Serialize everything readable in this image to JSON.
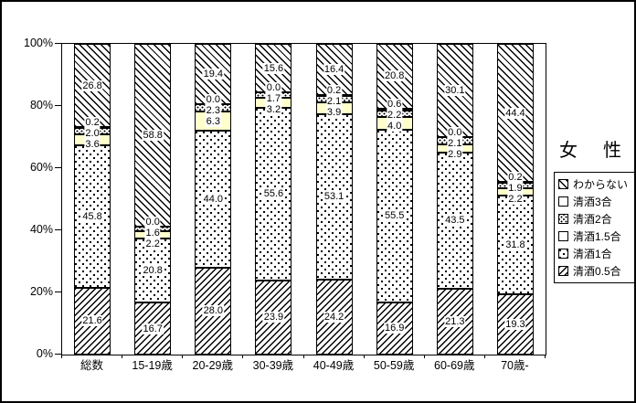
{
  "chart_data": {
    "type": "bar",
    "variant": "100%-stacked-vertical",
    "title": "女　性",
    "categories": [
      "総数",
      "15-19歳",
      "20-29歳",
      "30-39歳",
      "40-49歳",
      "50-59歳",
      "60-69歳",
      "70歳-"
    ],
    "series": [
      {
        "name": "清酒0.5合",
        "pattern": "diagonal-forward-hatch",
        "values": [
          21.6,
          16.7,
          28.0,
          23.9,
          24.2,
          16.9,
          21.3,
          19.3
        ]
      },
      {
        "name": "清酒1合",
        "pattern": "dots-sparse",
        "values": [
          45.8,
          20.8,
          44.0,
          55.6,
          53.1,
          55.5,
          43.5,
          31.8
        ]
      },
      {
        "name": "清酒1.5合",
        "pattern": "solid-yellow",
        "color": "#ffffcc",
        "values": [
          3.6,
          2.2,
          6.3,
          3.2,
          3.9,
          4.0,
          2.9,
          2.2
        ]
      },
      {
        "name": "清酒2合",
        "pattern": "dots-fine",
        "values": [
          2.0,
          1.6,
          2.3,
          1.7,
          2.1,
          2.2,
          2.1,
          1.9
        ]
      },
      {
        "name": "清酒3合",
        "pattern": "dark-dense",
        "values": [
          0.2,
          0.0,
          0.0,
          0.0,
          0.2,
          0.6,
          0.0,
          0.2
        ]
      },
      {
        "name": "わからない",
        "pattern": "diagonal-back-hatch",
        "values": [
          26.8,
          58.8,
          19.4,
          15.6,
          16.4,
          20.8,
          30.1,
          44.4
        ]
      }
    ],
    "ylabel": "",
    "xlabel": "",
    "y_axis": {
      "min": 0,
      "max": 100,
      "step": 20,
      "tick_labels": [
        "0%",
        "20%",
        "40%",
        "60%",
        "80%",
        "100%"
      ]
    },
    "legend_position": "right",
    "legend_order_top_to_bottom": [
      "わからない",
      "清酒3合",
      "清酒2合",
      "清酒1.5合",
      "清酒1合",
      "清酒0.5合"
    ],
    "grid": false,
    "data_labels": "shown-with-white-boxes",
    "colors": {
      "background": "#ffffff",
      "foreground": "#000000",
      "yellow_segment": "#ffffcc"
    }
  }
}
